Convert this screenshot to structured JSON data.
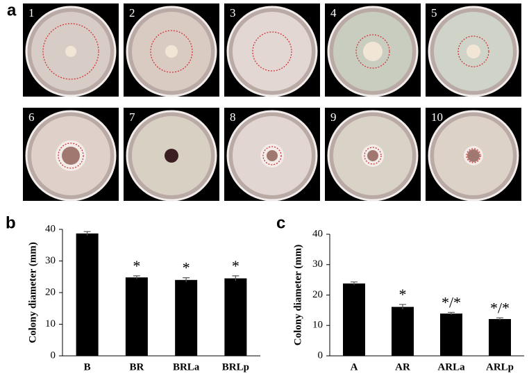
{
  "panel_labels": [
    "a",
    "b",
    "c"
  ],
  "photos": [
    "1",
    "2",
    "3",
    "4",
    "5",
    "6",
    "7",
    "8",
    "9",
    "10"
  ],
  "chart_data": [
    {
      "type": "bar",
      "y_label": "Colony diameter (mm)",
      "categories": [
        "B",
        "BR",
        "BRLa",
        "BRLp"
      ],
      "values": [
        38.7,
        24.8,
        24.0,
        24.5
      ],
      "errors": [
        0.6,
        0.5,
        0.7,
        0.8
      ],
      "annotations": [
        null,
        "*",
        "*",
        "*"
      ],
      "color": "#000000",
      "ylim": [
        0,
        40
      ],
      "yticks": [
        0,
        10,
        20,
        30,
        40
      ]
    },
    {
      "type": "bar",
      "y_label": "Colony diameter (mm)",
      "categories": [
        "A",
        "AR",
        "ARLa",
        "ARLp"
      ],
      "values": [
        23.8,
        16.1,
        13.9,
        12.1
      ],
      "errors": [
        0.5,
        0.8,
        0.4,
        0.4
      ],
      "annotations": [
        null,
        "*",
        "*/*",
        "*/*"
      ],
      "color": "#000000",
      "ylim": [
        0,
        40
      ],
      "yticks": [
        0,
        10,
        20,
        30,
        40
      ]
    }
  ]
}
